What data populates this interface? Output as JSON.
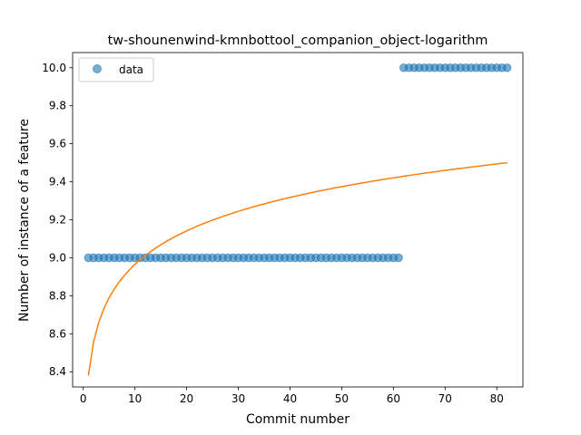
{
  "chart_data": {
    "type": "scatter",
    "title": "tw-shounenwind-kmnbottool_companion_object-logarithm",
    "xlabel": "Commit number",
    "ylabel": "Number of instance of a feature",
    "xlim": [
      -2.05,
      85.05
    ],
    "ylim": [
      8.32,
      10.08
    ],
    "xticks": [
      0,
      10,
      20,
      30,
      40,
      50,
      60,
      70,
      80
    ],
    "yticks": [
      8.4,
      8.6,
      8.8,
      9.0,
      9.2,
      9.4,
      9.6,
      9.8,
      10.0
    ],
    "ytick_labels": [
      "8.4",
      "8.6",
      "8.8",
      "9.0",
      "9.2",
      "9.4",
      "9.6",
      "9.8",
      "10.0"
    ],
    "legend": {
      "position": "top-left",
      "entries": [
        "data"
      ]
    },
    "grid": false,
    "series": [
      {
        "name": "data",
        "kind": "scatter",
        "color": "#1f77b4",
        "opacity": 0.6,
        "segments": [
          {
            "x_start": 1,
            "x_end": 61,
            "y": 9.0
          },
          {
            "x_start": 62,
            "x_end": 82,
            "y": 10.0
          }
        ]
      },
      {
        "kind": "line",
        "color": "#ff7f0e",
        "fit": "logarithmic",
        "x_range": [
          1,
          82
        ],
        "y_at_start": 8.38,
        "y_at_end": 9.5
      }
    ]
  }
}
